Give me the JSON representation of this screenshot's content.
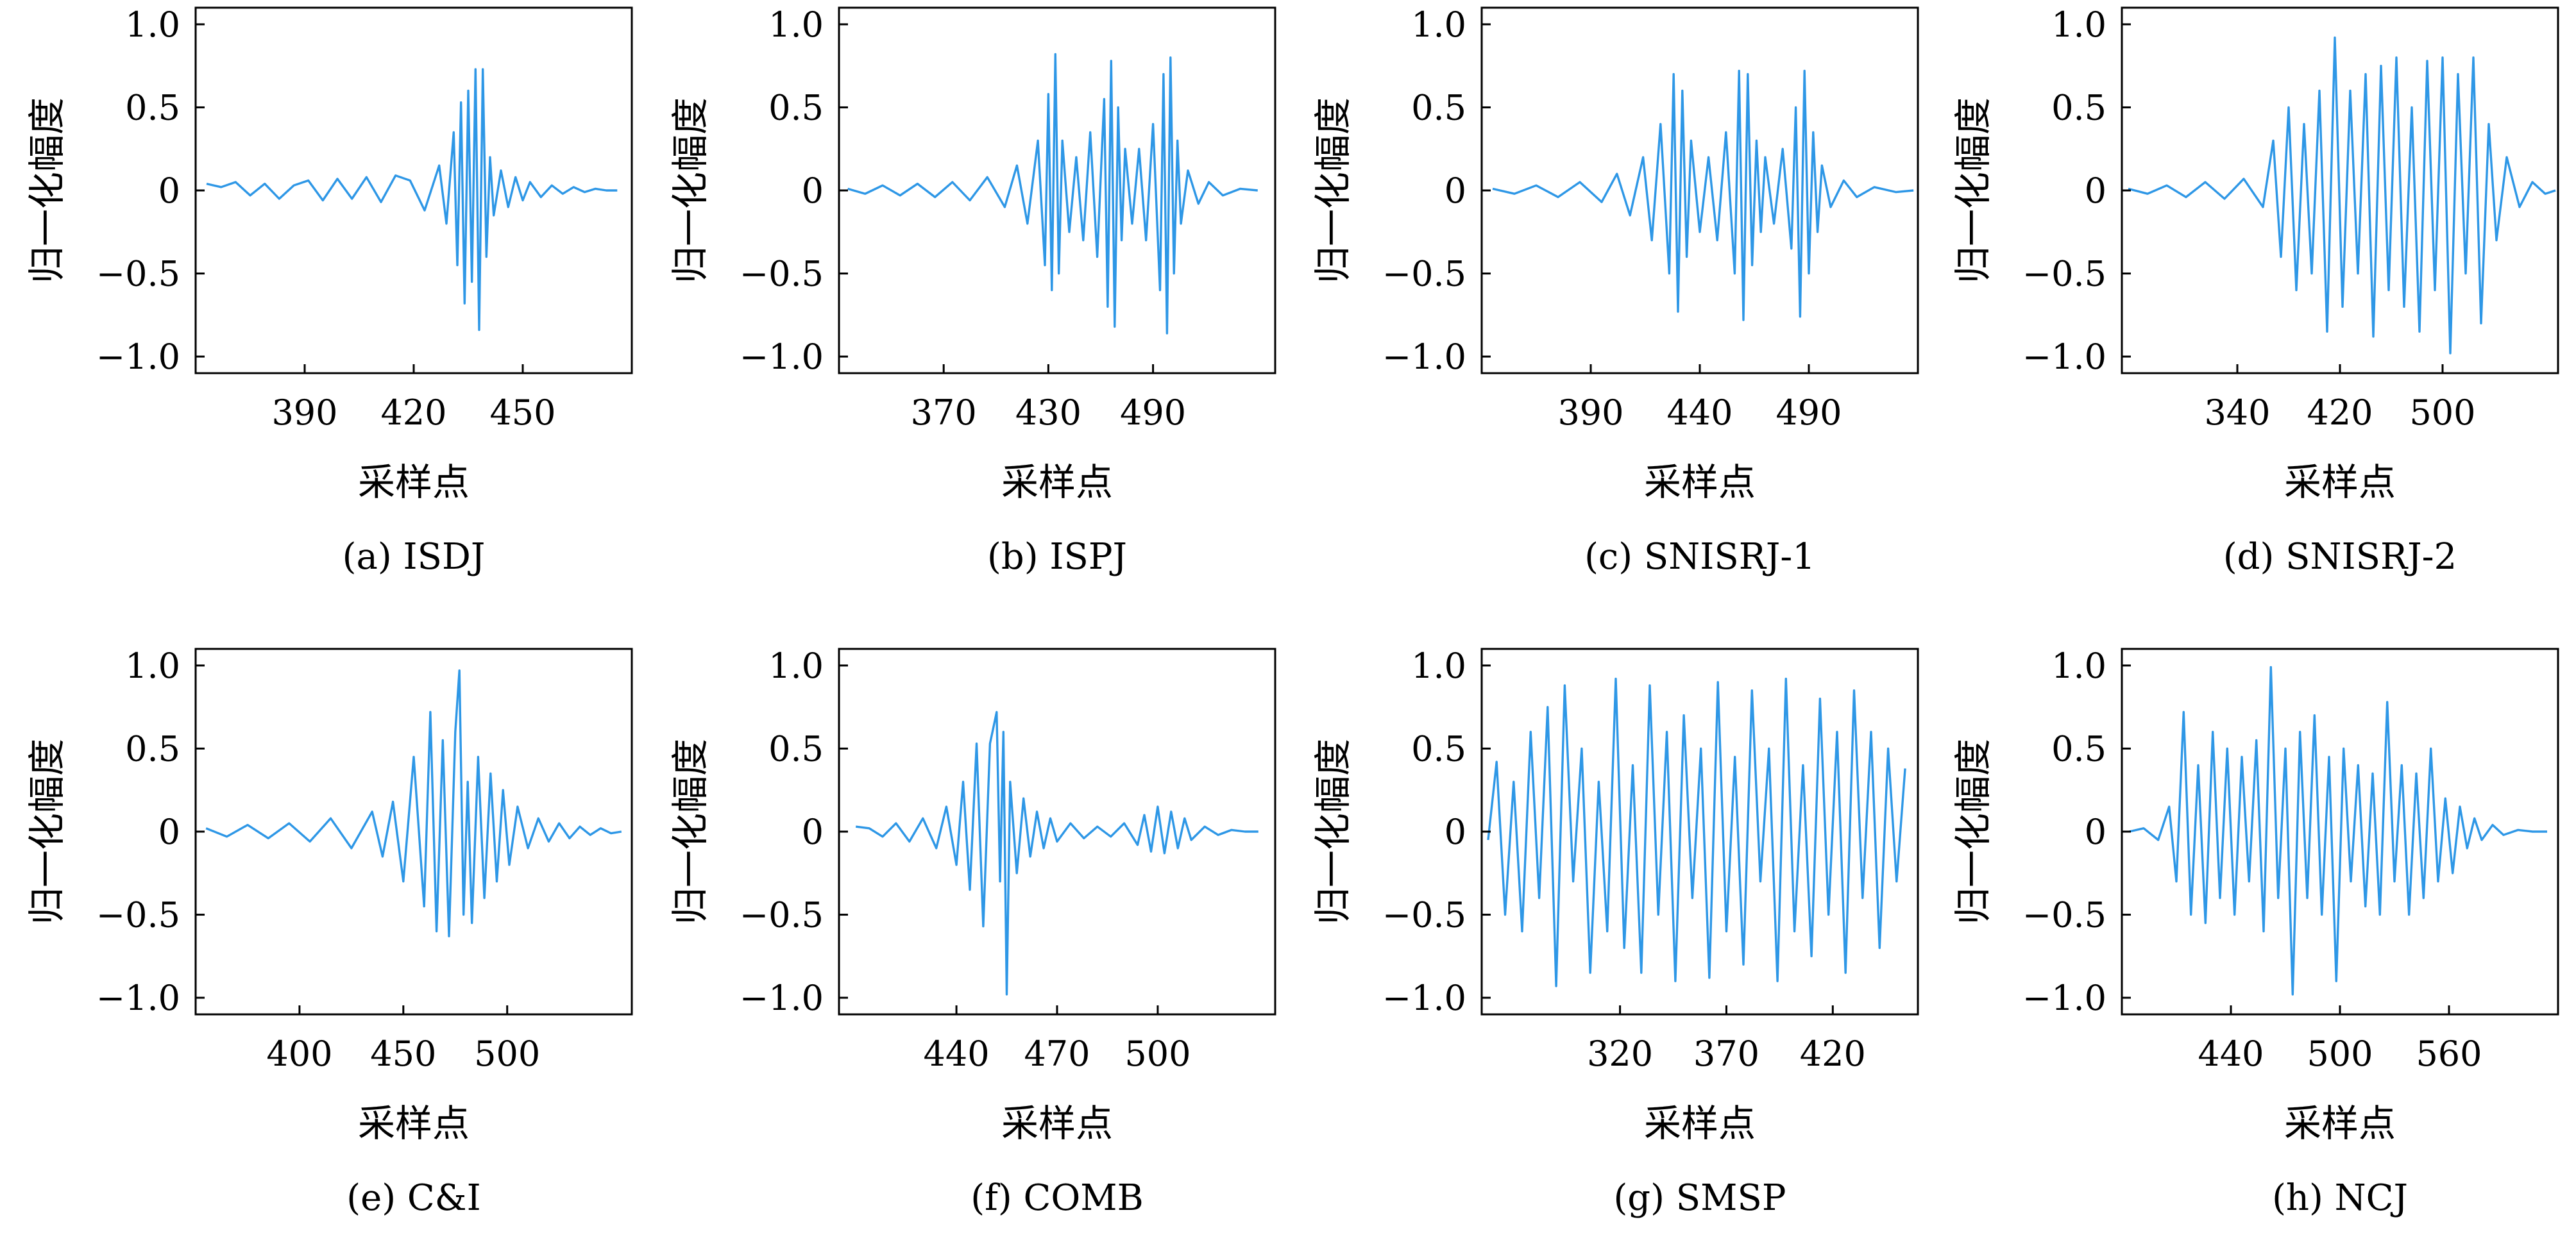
{
  "chart_data": [
    {
      "type": "line",
      "caption": "(a) ISDJ",
      "xlabel": "采样点",
      "ylabel": "归一化幅度",
      "xlim": [
        360,
        480
      ],
      "ylim": [
        -1.1,
        1.1
      ],
      "xticks": [
        390,
        420,
        450
      ],
      "xtick_labels": [
        "390",
        "420",
        "450"
      ],
      "yticks": [
        1.0,
        0.5,
        0,
        -0.5,
        -1.0
      ],
      "ytick_labels": [
        "1.0",
        "0.5",
        "0",
        "−0.5",
        "−1.0"
      ],
      "color": "#2E97E6",
      "series": [
        {
          "x": [
            363,
            367,
            371,
            375,
            379,
            383,
            387,
            391,
            395,
            399,
            403,
            407,
            411,
            415,
            419,
            423,
            427,
            429,
            431,
            432,
            433,
            434,
            435,
            436,
            437,
            438,
            439,
            440,
            441,
            442,
            444,
            446,
            448,
            450,
            452,
            455,
            458,
            461,
            464,
            467,
            470,
            473,
            476
          ],
          "y": [
            0.04,
            0.02,
            0.05,
            -0.03,
            0.04,
            -0.05,
            0.03,
            0.06,
            -0.06,
            0.07,
            -0.05,
            0.08,
            -0.07,
            0.09,
            0.06,
            -0.12,
            0.15,
            -0.2,
            0.35,
            -0.45,
            0.53,
            -0.68,
            0.6,
            -0.55,
            0.73,
            -0.84,
            0.73,
            -0.4,
            0.2,
            -0.15,
            0.12,
            -0.1,
            0.08,
            -0.06,
            0.05,
            -0.04,
            0.03,
            -0.02,
            0.02,
            -0.01,
            0.01,
            0.0,
            0.0
          ]
        }
      ]
    },
    {
      "type": "line",
      "caption": "(b) ISPJ",
      "xlabel": "采样点",
      "ylabel": "归一化幅度",
      "xlim": [
        310,
        560
      ],
      "ylim": [
        -1.1,
        1.1
      ],
      "xticks": [
        370,
        430,
        490
      ],
      "xtick_labels": [
        "370",
        "430",
        "490"
      ],
      "yticks": [
        1.0,
        0.5,
        0,
        -0.5,
        -1.0
      ],
      "ytick_labels": [
        "1.0",
        "0.5",
        "0",
        "−0.5",
        "−1.0"
      ],
      "color": "#2E97E6",
      "series": [
        {
          "x": [
            315,
            325,
            335,
            345,
            355,
            365,
            375,
            385,
            395,
            405,
            412,
            418,
            424,
            428,
            430,
            432,
            434,
            436,
            438,
            442,
            446,
            450,
            454,
            458,
            462,
            464,
            466,
            468,
            470,
            472,
            474,
            478,
            482,
            486,
            490,
            494,
            496,
            498,
            500,
            502,
            504,
            506,
            510,
            516,
            522,
            530,
            540,
            550
          ],
          "y": [
            0.01,
            -0.02,
            0.03,
            -0.03,
            0.04,
            -0.04,
            0.05,
            -0.06,
            0.08,
            -0.1,
            0.15,
            -0.2,
            0.3,
            -0.45,
            0.58,
            -0.6,
            0.82,
            -0.5,
            0.3,
            -0.25,
            0.2,
            -0.3,
            0.35,
            -0.4,
            0.55,
            -0.7,
            0.78,
            -0.82,
            0.5,
            -0.3,
            0.25,
            -0.2,
            0.25,
            -0.3,
            0.4,
            -0.6,
            0.7,
            -0.86,
            0.8,
            -0.5,
            0.3,
            -0.2,
            0.12,
            -0.08,
            0.05,
            -0.03,
            0.01,
            0.0
          ]
        }
      ]
    },
    {
      "type": "line",
      "caption": "(c) SNISRJ-1",
      "xlabel": "采样点",
      "ylabel": "归一化幅度",
      "xlim": [
        340,
        540
      ],
      "ylim": [
        -1.1,
        1.1
      ],
      "xticks": [
        390,
        440,
        490
      ],
      "xtick_labels": [
        "390",
        "440",
        "490"
      ],
      "yticks": [
        1.0,
        0.5,
        0,
        -0.5,
        -1.0
      ],
      "ytick_labels": [
        "1.0",
        "0.5",
        "0",
        "−0.5",
        "−1.0"
      ],
      "color": "#2E97E6",
      "series": [
        {
          "x": [
            345,
            355,
            365,
            375,
            385,
            395,
            402,
            408,
            414,
            418,
            422,
            426,
            428,
            430,
            432,
            434,
            436,
            440,
            444,
            448,
            452,
            456,
            458,
            460,
            462,
            464,
            466,
            468,
            470,
            474,
            478,
            482,
            484,
            486,
            488,
            490,
            492,
            494,
            496,
            500,
            506,
            512,
            520,
            530,
            538
          ],
          "y": [
            0.01,
            -0.02,
            0.03,
            -0.04,
            0.05,
            -0.07,
            0.1,
            -0.15,
            0.2,
            -0.3,
            0.4,
            -0.5,
            0.7,
            -0.73,
            0.6,
            -0.4,
            0.3,
            -0.25,
            0.2,
            -0.3,
            0.35,
            -0.5,
            0.72,
            -0.78,
            0.7,
            -0.45,
            0.3,
            -0.25,
            0.2,
            -0.2,
            0.25,
            -0.35,
            0.5,
            -0.76,
            0.72,
            -0.5,
            0.35,
            -0.25,
            0.15,
            -0.1,
            0.06,
            -0.04,
            0.02,
            -0.01,
            0.0
          ]
        }
      ]
    },
    {
      "type": "line",
      "caption": "(d) SNISRJ-2",
      "xlabel": "采样点",
      "ylabel": "归一化幅度",
      "xlim": [
        250,
        590
      ],
      "ylim": [
        -1.1,
        1.1
      ],
      "xticks": [
        340,
        420,
        500
      ],
      "xtick_labels": [
        "340",
        "420",
        "500"
      ],
      "yticks": [
        1.0,
        0.5,
        0,
        -0.5,
        -1.0
      ],
      "ytick_labels": [
        "1.0",
        "0.5",
        "0",
        "−0.5",
        "−1.0"
      ],
      "color": "#2E97E6",
      "series": [
        {
          "x": [
            255,
            270,
            285,
            300,
            315,
            330,
            345,
            360,
            368,
            374,
            380,
            386,
            392,
            398,
            404,
            410,
            416,
            422,
            428,
            434,
            440,
            446,
            452,
            458,
            464,
            470,
            476,
            482,
            488,
            494,
            500,
            506,
            512,
            518,
            524,
            530,
            536,
            542,
            550,
            560,
            570,
            580,
            588
          ],
          "y": [
            0.01,
            -0.02,
            0.03,
            -0.04,
            0.05,
            -0.05,
            0.07,
            -0.1,
            0.3,
            -0.4,
            0.5,
            -0.6,
            0.4,
            -0.5,
            0.6,
            -0.85,
            0.92,
            -0.7,
            0.6,
            -0.5,
            0.7,
            -0.88,
            0.75,
            -0.6,
            0.8,
            -0.7,
            0.5,
            -0.85,
            0.78,
            -0.6,
            0.8,
            -0.98,
            0.7,
            -0.5,
            0.8,
            -0.8,
            0.4,
            -0.3,
            0.2,
            -0.1,
            0.05,
            -0.02,
            0.0
          ]
        }
      ]
    },
    {
      "type": "line",
      "caption": "(e) C&I",
      "xlabel": "采样点",
      "ylabel": "归一化幅度",
      "xlim": [
        350,
        560
      ],
      "ylim": [
        -1.1,
        1.1
      ],
      "xticks": [
        400,
        450,
        500
      ],
      "xtick_labels": [
        "400",
        "450",
        "500"
      ],
      "yticks": [
        1.0,
        0.5,
        0,
        -0.5,
        -1.0
      ],
      "ytick_labels": [
        "1.0",
        "0.5",
        "0",
        "−0.5",
        "−1.0"
      ],
      "color": "#2E97E6",
      "series": [
        {
          "x": [
            355,
            365,
            375,
            385,
            395,
            405,
            415,
            425,
            435,
            440,
            445,
            450,
            455,
            460,
            463,
            466,
            469,
            472,
            475,
            477,
            479,
            481,
            483,
            486,
            489,
            492,
            495,
            498,
            501,
            505,
            510,
            515,
            520,
            525,
            530,
            535,
            540,
            545,
            550,
            555
          ],
          "y": [
            0.02,
            -0.03,
            0.04,
            -0.04,
            0.05,
            -0.06,
            0.08,
            -0.1,
            0.12,
            -0.15,
            0.18,
            -0.3,
            0.45,
            -0.45,
            0.72,
            -0.6,
            0.55,
            -0.63,
            0.6,
            0.97,
            -0.5,
            0.3,
            -0.55,
            0.45,
            -0.4,
            0.35,
            -0.3,
            0.25,
            -0.2,
            0.15,
            -0.1,
            0.08,
            -0.06,
            0.05,
            -0.04,
            0.03,
            -0.02,
            0.02,
            -0.01,
            0.0
          ]
        }
      ]
    },
    {
      "type": "line",
      "caption": "(f) COMB",
      "xlabel": "采样点",
      "ylabel": "归一化幅度",
      "xlim": [
        405,
        535
      ],
      "ylim": [
        -1.1,
        1.1
      ],
      "xticks": [
        440,
        470,
        500
      ],
      "xtick_labels": [
        "440",
        "470",
        "500"
      ],
      "yticks": [
        1.0,
        0.5,
        0,
        -0.5,
        -1.0
      ],
      "ytick_labels": [
        "1.0",
        "0.5",
        "0",
        "−0.5",
        "−1.0"
      ],
      "color": "#2E97E6",
      "series": [
        {
          "x": [
            410,
            414,
            418,
            422,
            426,
            430,
            434,
            437,
            440,
            442,
            444,
            446,
            448,
            450,
            452,
            453,
            454,
            455,
            456,
            458,
            460,
            462,
            464,
            466,
            468,
            470,
            474,
            478,
            482,
            486,
            490,
            494,
            496,
            498,
            500,
            502,
            504,
            506,
            508,
            510,
            514,
            518,
            522,
            526,
            530
          ],
          "y": [
            0.03,
            0.02,
            -0.03,
            0.05,
            -0.06,
            0.08,
            -0.1,
            0.15,
            -0.2,
            0.3,
            -0.35,
            0.53,
            -0.57,
            0.53,
            0.72,
            -0.3,
            0.6,
            -0.98,
            0.3,
            -0.25,
            0.2,
            -0.15,
            0.12,
            -0.1,
            0.08,
            -0.06,
            0.05,
            -0.04,
            0.03,
            -0.03,
            0.05,
            -0.08,
            0.1,
            -0.12,
            0.15,
            -0.13,
            0.12,
            -0.1,
            0.08,
            -0.05,
            0.03,
            -0.02,
            0.01,
            0.0,
            0.0
          ]
        }
      ]
    },
    {
      "type": "line",
      "caption": "(g) SMSP",
      "xlabel": "采样点",
      "ylabel": "归一化幅度",
      "xlim": [
        255,
        460
      ],
      "ylim": [
        -1.1,
        1.1
      ],
      "xticks": [
        320,
        370,
        420
      ],
      "xtick_labels": [
        "320",
        "370",
        "420"
      ],
      "yticks": [
        1.0,
        0.5,
        0,
        -0.5,
        -1.0
      ],
      "ytick_labels": [
        "1.0",
        "0.5",
        "0",
        "−0.5",
        "−1.0"
      ],
      "color": "#2E97E6",
      "series": [
        {
          "x": [
            258,
            262,
            266,
            270,
            274,
            278,
            282,
            286,
            290,
            294,
            298,
            302,
            306,
            310,
            314,
            318,
            322,
            326,
            330,
            334,
            338,
            342,
            346,
            350,
            354,
            358,
            362,
            366,
            370,
            374,
            378,
            382,
            386,
            390,
            394,
            398,
            402,
            406,
            410,
            414,
            418,
            422,
            426,
            430,
            434,
            438,
            442,
            446,
            450,
            454
          ],
          "y": [
            -0.05,
            0.42,
            -0.5,
            0.3,
            -0.6,
            0.6,
            -0.4,
            0.75,
            -0.93,
            0.88,
            -0.3,
            0.5,
            -0.85,
            0.3,
            -0.6,
            0.92,
            -0.7,
            0.4,
            -0.85,
            0.88,
            -0.5,
            0.6,
            -0.9,
            0.7,
            -0.4,
            0.5,
            -0.88,
            0.9,
            -0.6,
            0.45,
            -0.8,
            0.85,
            -0.3,
            0.5,
            -0.9,
            0.92,
            -0.6,
            0.4,
            -0.75,
            0.8,
            -0.5,
            0.6,
            -0.85,
            0.85,
            -0.4,
            0.6,
            -0.7,
            0.5,
            -0.3,
            0.38
          ]
        }
      ]
    },
    {
      "type": "line",
      "caption": "(h) NCJ",
      "xlabel": "采样点",
      "ylabel": "归一化幅度",
      "xlim": [
        380,
        620
      ],
      "ylim": [
        -1.1,
        1.1
      ],
      "xticks": [
        440,
        500,
        560
      ],
      "xtick_labels": [
        "440",
        "500",
        "560"
      ],
      "yticks": [
        1.0,
        0.5,
        0,
        -0.5,
        -1.0
      ],
      "ytick_labels": [
        "1.0",
        "0.5",
        "0",
        "−0.5",
        "−1.0"
      ],
      "color": "#2E97E6",
      "series": [
        {
          "x": [
            384,
            392,
            400,
            406,
            410,
            414,
            418,
            422,
            426,
            430,
            434,
            438,
            442,
            446,
            450,
            454,
            458,
            462,
            466,
            470,
            474,
            478,
            482,
            486,
            490,
            494,
            498,
            502,
            506,
            510,
            514,
            518,
            522,
            526,
            530,
            534,
            538,
            542,
            546,
            550,
            554,
            558,
            562,
            566,
            570,
            574,
            578,
            584,
            590,
            598,
            606,
            614
          ],
          "y": [
            0.0,
            0.02,
            -0.05,
            0.15,
            -0.3,
            0.72,
            -0.5,
            0.4,
            -0.55,
            0.6,
            -0.4,
            0.5,
            -0.5,
            0.45,
            -0.3,
            0.55,
            -0.6,
            0.99,
            -0.4,
            0.5,
            -0.98,
            0.6,
            -0.4,
            0.7,
            -0.5,
            0.45,
            -0.9,
            0.5,
            -0.3,
            0.4,
            -0.45,
            0.35,
            -0.5,
            0.78,
            -0.3,
            0.4,
            -0.5,
            0.35,
            -0.4,
            0.5,
            -0.3,
            0.2,
            -0.25,
            0.15,
            -0.1,
            0.08,
            -0.05,
            0.04,
            -0.02,
            0.01,
            0.0,
            0.0
          ]
        }
      ]
    }
  ]
}
